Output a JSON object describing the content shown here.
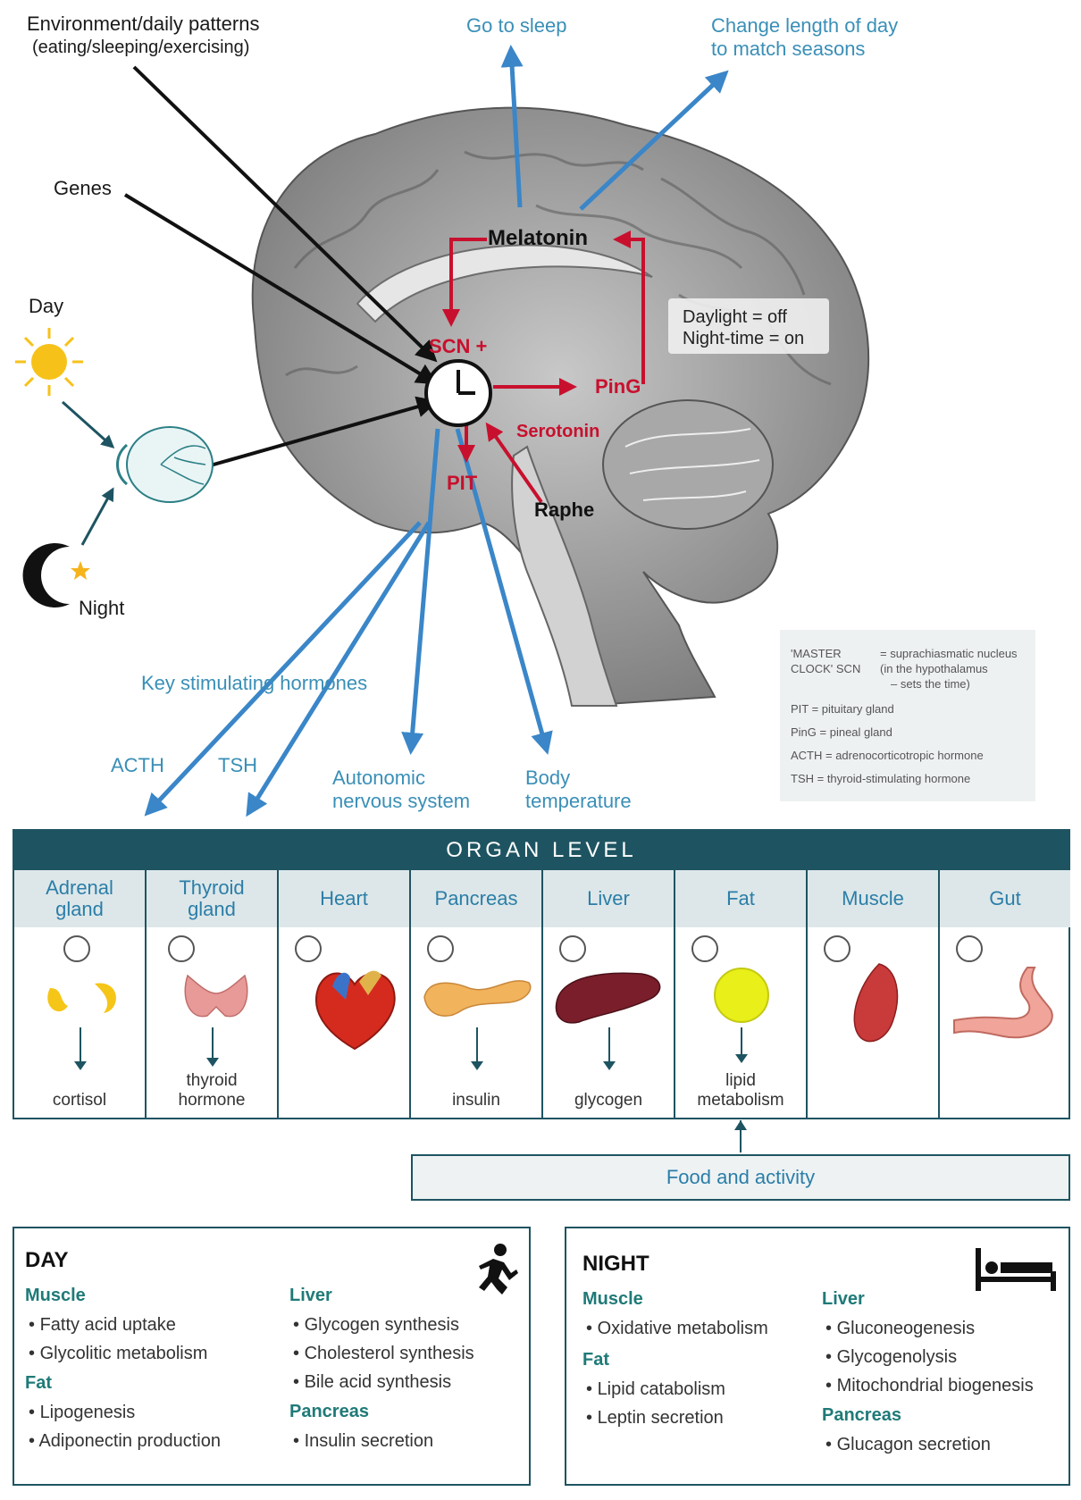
{
  "inputs": {
    "environment_line1": "Environment/daily patterns",
    "environment_line2": "(eating/sleeping/exercising)",
    "genes": "Genes",
    "day": "Day",
    "night": "Night"
  },
  "outputs_top": {
    "sleep": "Go to sleep",
    "season_line1": "Change length of day",
    "season_line2": "to match seasons"
  },
  "brain_labels": {
    "melatonin": "Melatonin",
    "scn": "SCN +",
    "ping": "PinG",
    "serotonin": "Serotonin",
    "pit": "PIT",
    "raphe": "Raphe",
    "daylight_line1": "Daylight = off",
    "daylight_line2": "Night-time = on"
  },
  "outputs_bottom": {
    "key_hormones": "Key stimulating hormones",
    "acth": "ACTH",
    "tsh": "TSH",
    "ans_line1": "Autonomic",
    "ans_line2": "nervous system",
    "temp_line1": "Body",
    "temp_line2": "temperature"
  },
  "legend": {
    "master_label_1": "'MASTER",
    "master_label_2": "CLOCK' SCN",
    "master_def_1": "= suprachiasmatic nucleus",
    "master_def_2": "(in the hypothalamus",
    "master_def_3": "– sets the time)",
    "pit": "PIT = pituitary gland",
    "ping": "PinG = pineal gland",
    "acth": "ACTH = adrenocorticotropic hormone",
    "tsh": "TSH = thyroid-stimulating hormone"
  },
  "organ_level": {
    "title": "ORGAN LEVEL",
    "organs": [
      {
        "name1": "Adrenal",
        "name2": "gland",
        "out1": "cortisol",
        "out2": ""
      },
      {
        "name1": "Thyroid",
        "name2": "gland",
        "out1": "thyroid",
        "out2": "hormone"
      },
      {
        "name1": "Heart",
        "name2": "",
        "out1": "",
        "out2": ""
      },
      {
        "name1": "Pancreas",
        "name2": "",
        "out1": "insulin",
        "out2": ""
      },
      {
        "name1": "Liver",
        "name2": "",
        "out1": "glycogen",
        "out2": ""
      },
      {
        "name1": "Fat",
        "name2": "",
        "out1": "lipid",
        "out2": "metabolism"
      },
      {
        "name1": "Muscle",
        "name2": "",
        "out1": "",
        "out2": ""
      },
      {
        "name1": "Gut",
        "name2": "",
        "out1": "",
        "out2": ""
      }
    ],
    "food": "Food and activity"
  },
  "day": {
    "title": "DAY",
    "muscle_h": "Muscle",
    "muscle": [
      "Fatty acid uptake",
      "Glycolitic metabolism"
    ],
    "fat_h": "Fat",
    "fat": [
      "Lipogenesis",
      "Adiponectin production"
    ],
    "liver_h": "Liver",
    "liver": [
      "Glycogen synthesis",
      "Cholesterol synthesis",
      "Bile acid synthesis"
    ],
    "pancreas_h": "Pancreas",
    "pancreas": [
      "Insulin secretion"
    ]
  },
  "night_box": {
    "title": "NIGHT",
    "muscle_h": "Muscle",
    "muscle": [
      "Oxidative metabolism"
    ],
    "fat_h": "Fat",
    "fat": [
      "Lipid catabolism",
      "Leptin secretion"
    ],
    "liver_h": "Liver",
    "liver": [
      "Gluconeogenesis",
      "Glycogenolysis",
      "Mitochondrial biogenesis"
    ],
    "pancreas_h": "Pancreas",
    "pancreas": [
      "Glucagon secretion"
    ]
  },
  "colors": {
    "blue_arrow": "#3a86c8",
    "red_arrow": "#c8102e",
    "teal": "#1e5461",
    "brain_gray": "#9a9a9a"
  }
}
